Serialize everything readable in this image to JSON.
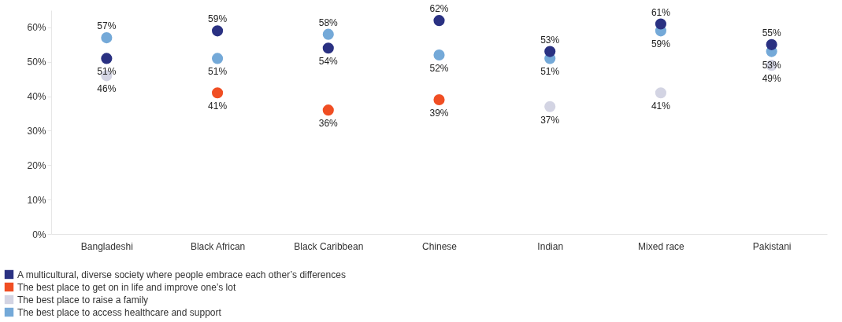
{
  "chart_data": {
    "type": "scatter",
    "categories": [
      "Bangladeshi",
      "Black African",
      "Black Caribbean",
      "Chinese",
      "Indian",
      "Mixed race",
      "Pakistani"
    ],
    "series": [
      {
        "name": "A multicultural, diverse society where people embrace each other’s differences",
        "color": "#2a3182",
        "values": [
          51,
          59,
          54,
          62,
          53,
          61,
          55
        ],
        "value_labels": [
          "51%",
          "59%",
          "54%",
          "62%",
          "53%",
          "61%",
          "55%"
        ]
      },
      {
        "name": "The best place to get on in life and improve one’s lot",
        "color": "#f04e23",
        "values": [
          null,
          41,
          36,
          39,
          null,
          null,
          null
        ],
        "value_labels": [
          null,
          "41%",
          "36%",
          "39%",
          null,
          null,
          null
        ]
      },
      {
        "name": "The best place to raise a family",
        "color": "#d3d4e3",
        "values": [
          46,
          null,
          null,
          null,
          37,
          41,
          49
        ],
        "value_labels": [
          "46%",
          null,
          null,
          null,
          "37%",
          "41%",
          "49%"
        ]
      },
      {
        "name": "The best place to access healthcare and support",
        "color": "#74a9d8",
        "values": [
          57,
          51,
          58,
          52,
          51,
          59,
          53
        ],
        "value_labels": [
          "57%",
          "51%",
          "58%",
          "52%",
          "51%",
          "59%",
          "53%"
        ]
      }
    ],
    "ylim": [
      0,
      65
    ],
    "yticks": [
      {
        "value": 0,
        "label": "0%"
      },
      {
        "value": 10,
        "label": "10%"
      },
      {
        "value": 20,
        "label": "20%"
      },
      {
        "value": 30,
        "label": "30%"
      },
      {
        "value": 40,
        "label": "40%"
      },
      {
        "value": 50,
        "label": "50%"
      },
      {
        "value": 60,
        "label": "60%"
      }
    ],
    "marker": "circle",
    "grid": false,
    "legend": "bottom left"
  }
}
